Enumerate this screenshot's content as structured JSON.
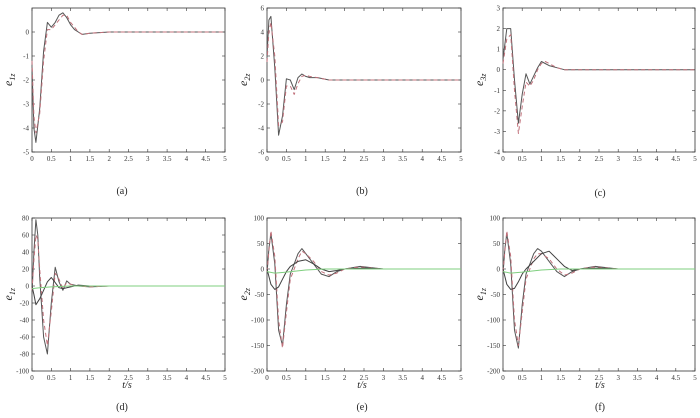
{
  "figure": {
    "title": ""
  },
  "chart_data": [
    {
      "type": "line",
      "caption": "(a)",
      "ylabel": "e",
      "ysub": "1z",
      "xlabel": "",
      "xlim": [
        0,
        5
      ],
      "ylim": [
        -5,
        1
      ],
      "xticks": [
        "0",
        "0.5",
        "1",
        "1.5",
        "2",
        "2.5",
        "3",
        "3.5",
        "4",
        "4.5",
        "5"
      ],
      "yticks": [
        "-5",
        "-4",
        "-3",
        "-2",
        "-1",
        "0"
      ],
      "series": [
        {
          "color": "#555555",
          "dash": "",
          "x": [
            0,
            0.05,
            0.1,
            0.2,
            0.3,
            0.4,
            0.5,
            0.6,
            0.7,
            0.8,
            0.9,
            1.0,
            1.1,
            1.2,
            1.3,
            1.5,
            2,
            5
          ],
          "y": [
            -1.5,
            -4,
            -4.6,
            -3.2,
            -0.8,
            0.4,
            0.2,
            0.4,
            0.7,
            0.8,
            0.6,
            0.3,
            0.1,
            0,
            -0.1,
            -0.05,
            0,
            0
          ]
        },
        {
          "color": "#c0707a",
          "dash": "4,3",
          "x": [
            0,
            0.05,
            0.1,
            0.2,
            0.3,
            0.4,
            0.5,
            0.6,
            0.7,
            0.8,
            0.9,
            1.0,
            1.1,
            1.2,
            1.3,
            1.5,
            2,
            5
          ],
          "y": [
            -1.2,
            -3.5,
            -4.2,
            -3.4,
            -1.2,
            0.1,
            0.1,
            0.3,
            0.5,
            0.7,
            0.7,
            0.4,
            0.2,
            0,
            -0.1,
            -0.05,
            0,
            0
          ]
        }
      ]
    },
    {
      "type": "line",
      "caption": "(b)",
      "ylabel": "e",
      "ysub": "2z",
      "xlabel": "",
      "xlim": [
        0,
        5
      ],
      "ylim": [
        -6,
        6
      ],
      "xticks": [
        "0",
        "0.5",
        "1",
        "1.5",
        "2",
        "2.5",
        "3",
        "3.5",
        "4",
        "4.5",
        "5"
      ],
      "yticks": [
        "-6",
        "-4",
        "-2",
        "0",
        "2",
        "4",
        "6"
      ],
      "series": [
        {
          "color": "#555555",
          "dash": "",
          "x": [
            0,
            0.05,
            0.1,
            0.2,
            0.3,
            0.4,
            0.5,
            0.6,
            0.7,
            0.8,
            0.9,
            1.0,
            1.1,
            1.3,
            1.6,
            2,
            3,
            5
          ],
          "y": [
            2,
            5,
            5.3,
            1,
            -4.6,
            -3,
            0.1,
            0,
            -0.8,
            0.2,
            0.5,
            0.3,
            0.2,
            0.2,
            0,
            0,
            0,
            0
          ]
        },
        {
          "color": "#c0707a",
          "dash": "4,3",
          "x": [
            0,
            0.05,
            0.1,
            0.2,
            0.3,
            0.4,
            0.5,
            0.6,
            0.7,
            0.8,
            0.9,
            1.0,
            1.1,
            1.3,
            1.6,
            2,
            3,
            5
          ],
          "y": [
            1.5,
            4,
            4.8,
            2,
            -3.8,
            -3.5,
            -0.5,
            -0.5,
            -1.2,
            -0.3,
            0.3,
            0.4,
            0.3,
            0.2,
            0,
            0,
            0,
            0
          ]
        }
      ]
    },
    {
      "type": "line",
      "caption": "(c)",
      "ylabel": "e",
      "ysub": "3z",
      "xlabel": "",
      "xlim": [
        0,
        5
      ],
      "ylim": [
        -4,
        3
      ],
      "xticks": [
        "0",
        "0.5",
        "1",
        "1.5",
        "2",
        "2.5",
        "3",
        "3.5",
        "4",
        "4.5",
        "5"
      ],
      "yticks": [
        "-4",
        "-3",
        "-2",
        "-1",
        "0",
        "1",
        "2",
        "3"
      ],
      "series": [
        {
          "color": "#555555",
          "dash": "",
          "x": [
            0,
            0.1,
            0.2,
            0.3,
            0.4,
            0.5,
            0.6,
            0.7,
            0.8,
            0.9,
            1.0,
            1.1,
            1.2,
            1.4,
            1.6,
            2,
            5
          ],
          "y": [
            0.5,
            2,
            2,
            -0.5,
            -2.6,
            -1.2,
            -0.2,
            -0.7,
            -0.3,
            0.1,
            0.4,
            0.3,
            0.2,
            0.1,
            0,
            0,
            0
          ]
        },
        {
          "color": "#c0707a",
          "dash": "4,3",
          "x": [
            0,
            0.1,
            0.2,
            0.3,
            0.4,
            0.5,
            0.6,
            0.7,
            0.8,
            0.9,
            1.0,
            1.1,
            1.2,
            1.4,
            1.6,
            2,
            5
          ],
          "y": [
            0.3,
            1.5,
            1.7,
            -1,
            -3.1,
            -1.8,
            -0.6,
            -0.8,
            -0.5,
            0,
            0.3,
            0.4,
            0.3,
            0.1,
            0,
            0,
            0
          ]
        }
      ]
    },
    {
      "type": "line",
      "caption": "(d)",
      "ylabel": "e",
      "ysub": "1z",
      "xlabel": "t/s",
      "xlim": [
        0,
        5
      ],
      "ylim": [
        -100,
        80
      ],
      "xticks": [
        "0",
        "0.5",
        "1",
        "1.5",
        "2",
        "2.5",
        "3",
        "3.5",
        "4",
        "4.5",
        "5"
      ],
      "yticks": [
        "-100",
        "-80",
        "-60",
        "-40",
        "-20",
        "0",
        "20",
        "40",
        "60",
        "80"
      ],
      "series": [
        {
          "color": "#555555",
          "dash": "",
          "x": [
            0,
            0.05,
            0.1,
            0.15,
            0.2,
            0.3,
            0.4,
            0.5,
            0.6,
            0.7,
            0.8,
            0.9,
            1.0,
            1.2,
            1.5,
            2,
            5
          ],
          "y": [
            -10,
            40,
            78,
            60,
            10,
            -60,
            -80,
            -20,
            22,
            5,
            -5,
            6,
            2,
            0,
            -1,
            0,
            0
          ]
        },
        {
          "color": "#c0707a",
          "dash": "4,3",
          "x": [
            0,
            0.05,
            0.1,
            0.15,
            0.2,
            0.3,
            0.4,
            0.5,
            0.6,
            0.7,
            0.8,
            0.9,
            1.0,
            1.2,
            1.5,
            2,
            5
          ],
          "y": [
            -5,
            30,
            60,
            55,
            20,
            -40,
            -70,
            -30,
            15,
            8,
            -3,
            4,
            2,
            0,
            -1,
            0,
            0
          ]
        },
        {
          "color": "#404040",
          "dash": "",
          "x": [
            0,
            0.05,
            0.1,
            0.2,
            0.3,
            0.4,
            0.5,
            0.6,
            0.7,
            0.8,
            1.0,
            1.2,
            1.5,
            2,
            5
          ],
          "y": [
            0,
            -10,
            -22,
            -15,
            -5,
            5,
            10,
            4,
            -2,
            -3,
            -1,
            1,
            0,
            0,
            0
          ]
        },
        {
          "color": "#7fcf7f",
          "dash": "",
          "x": [
            0,
            0.2,
            0.5,
            1,
            1.5,
            2,
            3,
            5
          ],
          "y": [
            -3,
            -2,
            -1,
            0,
            0,
            0,
            0,
            0
          ]
        }
      ]
    },
    {
      "type": "line",
      "caption": "(e)",
      "ylabel": "e",
      "ysub": "2z",
      "xlabel": "t/s",
      "xlim": [
        0,
        5
      ],
      "ylim": [
        -200,
        100
      ],
      "xticks": [
        "0",
        "0.5",
        "1",
        "1.5",
        "2",
        "2.5",
        "3",
        "3.5",
        "4",
        "4.5",
        "5"
      ],
      "yticks": [
        "-200",
        "-150",
        "-100",
        "-50",
        "0",
        "50",
        "100"
      ],
      "series": [
        {
          "color": "#555555",
          "dash": "",
          "x": [
            0,
            0.05,
            0.1,
            0.2,
            0.3,
            0.4,
            0.5,
            0.6,
            0.7,
            0.8,
            0.9,
            1.0,
            1.2,
            1.4,
            1.6,
            1.8,
            2.0,
            2.4,
            3,
            5
          ],
          "y": [
            -10,
            40,
            70,
            10,
            -120,
            -150,
            -70,
            -10,
            10,
            30,
            40,
            30,
            10,
            -10,
            -15,
            -5,
            0,
            5,
            0,
            0
          ]
        },
        {
          "color": "#c0707a",
          "dash": "4,3",
          "x": [
            0,
            0.05,
            0.1,
            0.2,
            0.3,
            0.4,
            0.5,
            0.6,
            0.7,
            0.8,
            0.9,
            1.0,
            1.2,
            1.4,
            1.6,
            1.8,
            2.0,
            2.4,
            3,
            5
          ],
          "y": [
            -5,
            35,
            75,
            25,
            -100,
            -155,
            -85,
            -20,
            0,
            20,
            35,
            30,
            15,
            -5,
            -12,
            -8,
            0,
            4,
            0,
            0
          ]
        },
        {
          "color": "#404040",
          "dash": "",
          "x": [
            0,
            0.1,
            0.2,
            0.3,
            0.4,
            0.5,
            0.6,
            0.8,
            1.0,
            1.2,
            1.4,
            1.6,
            1.8,
            2.0,
            2.5,
            3,
            5
          ],
          "y": [
            0,
            -30,
            -40,
            -35,
            -20,
            -5,
            5,
            15,
            18,
            10,
            0,
            -5,
            -3,
            0,
            2,
            0,
            0
          ]
        },
        {
          "color": "#7fcf7f",
          "dash": "",
          "x": [
            0,
            0.2,
            0.5,
            1,
            1.5,
            2,
            3,
            5
          ],
          "y": [
            -5,
            -8,
            -6,
            -2,
            0,
            0,
            0,
            0
          ]
        }
      ]
    },
    {
      "type": "line",
      "caption": "(f)",
      "ylabel": "e",
      "ysub": "1z",
      "xlabel": "t/s",
      "xlim": [
        0,
        5
      ],
      "ylim": [
        -200,
        100
      ],
      "xticks": [
        "0",
        "0.5",
        "1",
        "1.5",
        "2",
        "2.5",
        "3",
        "3.5",
        "4",
        "4.5",
        "5"
      ],
      "yticks": [
        "-200",
        "-150",
        "-100",
        "-50",
        "0",
        "50",
        "100"
      ],
      "series": [
        {
          "color": "#555555",
          "dash": "",
          "x": [
            0,
            0.05,
            0.1,
            0.2,
            0.3,
            0.4,
            0.5,
            0.6,
            0.7,
            0.8,
            0.9,
            1.0,
            1.2,
            1.4,
            1.6,
            1.8,
            2.0,
            2.4,
            3,
            5
          ],
          "y": [
            -10,
            40,
            70,
            10,
            -120,
            -155,
            -70,
            -10,
            10,
            30,
            40,
            35,
            15,
            -5,
            -15,
            -5,
            0,
            5,
            0,
            0
          ]
        },
        {
          "color": "#c0707a",
          "dash": "4,3",
          "x": [
            0,
            0.05,
            0.1,
            0.2,
            0.3,
            0.4,
            0.5,
            0.6,
            0.7,
            0.8,
            0.9,
            1.0,
            1.2,
            1.4,
            1.6,
            1.8,
            2.0,
            2.4,
            3,
            5
          ],
          "y": [
            -5,
            35,
            75,
            25,
            -100,
            -150,
            -85,
            -20,
            0,
            20,
            30,
            30,
            20,
            0,
            -12,
            -8,
            0,
            4,
            0,
            0
          ]
        },
        {
          "color": "#404040",
          "dash": "",
          "x": [
            0,
            0.1,
            0.2,
            0.3,
            0.4,
            0.5,
            0.6,
            0.8,
            1.0,
            1.2,
            1.4,
            1.6,
            1.8,
            2.0,
            2.5,
            3,
            5
          ],
          "y": [
            0,
            -30,
            -40,
            -38,
            -25,
            -10,
            0,
            15,
            30,
            35,
            20,
            5,
            -3,
            0,
            2,
            0,
            0
          ]
        },
        {
          "color": "#7fcf7f",
          "dash": "",
          "x": [
            0,
            0.2,
            0.5,
            1,
            1.5,
            2,
            3,
            5
          ],
          "y": [
            -5,
            -8,
            -6,
            -2,
            0,
            0,
            0,
            0
          ]
        }
      ]
    }
  ]
}
